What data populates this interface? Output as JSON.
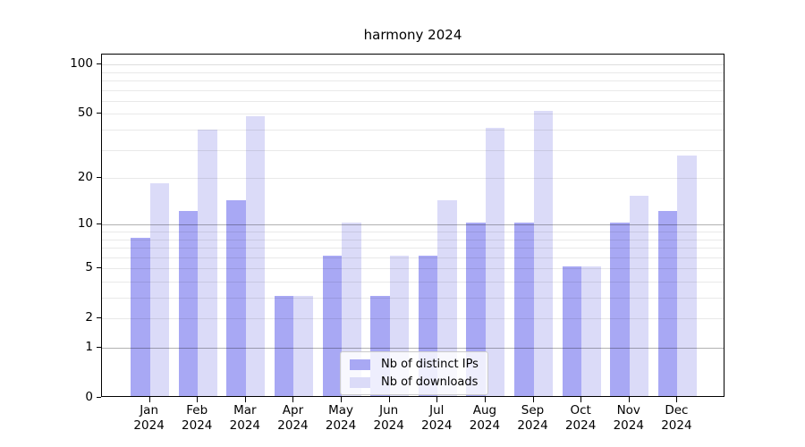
{
  "chart_data": {
    "type": "bar",
    "title": "harmony 2024",
    "categories": [
      "Jan",
      "Feb",
      "Mar",
      "Apr",
      "May",
      "Jun",
      "Jul",
      "Aug",
      "Sep",
      "Oct",
      "Nov",
      "Dec"
    ],
    "category_year": "2024",
    "series": [
      {
        "name": "Nb of distinct IPs",
        "color": "#a8a8f4",
        "values": [
          8,
          12,
          14,
          3,
          6,
          3,
          6,
          10,
          10,
          5,
          10,
          12
        ]
      },
      {
        "name": "Nb of downloads",
        "color": "#dbdbf8",
        "values": [
          18,
          39,
          47,
          3,
          10,
          6,
          14,
          40,
          51,
          5,
          15,
          27
        ]
      }
    ],
    "yscale": "log1p",
    "ylim": [
      0,
      115
    ],
    "yticks": [
      0,
      1,
      2,
      5,
      10,
      20,
      50,
      100
    ],
    "major_gridlines": [
      1,
      10
    ],
    "minor_gridlines": [
      2,
      3,
      4,
      5,
      6,
      7,
      8,
      9,
      20,
      30,
      40,
      50,
      60,
      70,
      80,
      90,
      100
    ],
    "grid": true,
    "legend_position": "lower-center",
    "bar_group_width_fraction": 0.8
  }
}
